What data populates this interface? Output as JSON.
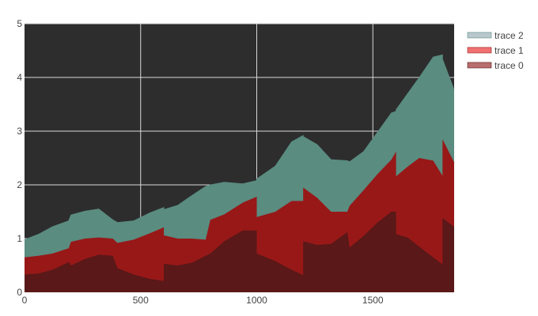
{
  "chart_data": {
    "type": "area",
    "stacked": true,
    "xlim": [
      0,
      1850
    ],
    "ylim": [
      0,
      5
    ],
    "x_ticks": [
      0,
      500,
      1000,
      1500
    ],
    "x_tick_labels": [
      "0",
      "500",
      "1000",
      "1500"
    ],
    "y_ticks": [
      0,
      1,
      2,
      3,
      4,
      5
    ],
    "y_tick_labels": [
      "0",
      "1",
      "2",
      "3",
      "4",
      "5"
    ],
    "grid": true,
    "plot_background": "#2d2d2d",
    "legend_position": "top-right",
    "series": [
      {
        "name": "trace 0",
        "color": "#5a1818",
        "legend_color": "#b86e6e",
        "points": [
          [
            0,
            0.33
          ],
          [
            60,
            0.35
          ],
          [
            120,
            0.42
          ],
          [
            190,
            0.56
          ],
          [
            200,
            0.5
          ],
          [
            260,
            0.62
          ],
          [
            320,
            0.7
          ],
          [
            380,
            0.68
          ],
          [
            400,
            0.45
          ],
          [
            470,
            0.33
          ],
          [
            540,
            0.25
          ],
          [
            600,
            0.21
          ],
          [
            600,
            0.53
          ],
          [
            660,
            0.5
          ],
          [
            720,
            0.55
          ],
          [
            780,
            0.68
          ],
          [
            800,
            0.72
          ],
          [
            860,
            0.95
          ],
          [
            940,
            1.15
          ],
          [
            1000,
            1.15
          ],
          [
            1000,
            0.72
          ],
          [
            1080,
            0.58
          ],
          [
            1150,
            0.42
          ],
          [
            1200,
            0.32
          ],
          [
            1200,
            0.95
          ],
          [
            1260,
            0.88
          ],
          [
            1320,
            0.9
          ],
          [
            1390,
            1.12
          ],
          [
            1400,
            0.83
          ],
          [
            1460,
            1.05
          ],
          [
            1520,
            1.3
          ],
          [
            1580,
            1.5
          ],
          [
            1600,
            1.5
          ],
          [
            1600,
            1.08
          ],
          [
            1650,
            1.02
          ],
          [
            1700,
            0.85
          ],
          [
            1760,
            0.65
          ],
          [
            1800,
            0.52
          ],
          [
            1800,
            1.38
          ],
          [
            1850,
            1.22
          ]
        ]
      },
      {
        "name": "trace 1",
        "color": "#981818",
        "legend_color": "#f07272",
        "points": [
          [
            0,
            0.32
          ],
          [
            60,
            0.33
          ],
          [
            120,
            0.3
          ],
          [
            190,
            0.26
          ],
          [
            200,
            0.44
          ],
          [
            260,
            0.38
          ],
          [
            320,
            0.32
          ],
          [
            380,
            0.32
          ],
          [
            400,
            0.47
          ],
          [
            470,
            0.65
          ],
          [
            540,
            0.85
          ],
          [
            600,
            1.0
          ],
          [
            600,
            0.53
          ],
          [
            660,
            0.5
          ],
          [
            720,
            0.45
          ],
          [
            780,
            0.3
          ],
          [
            800,
            0.63
          ],
          [
            860,
            0.5
          ],
          [
            940,
            0.52
          ],
          [
            1000,
            0.63
          ],
          [
            1000,
            0.68
          ],
          [
            1080,
            0.92
          ],
          [
            1150,
            1.28
          ],
          [
            1200,
            1.38
          ],
          [
            1200,
            1.0
          ],
          [
            1260,
            0.88
          ],
          [
            1320,
            0.6
          ],
          [
            1390,
            0.38
          ],
          [
            1400,
            0.78
          ],
          [
            1460,
            0.85
          ],
          [
            1520,
            0.9
          ],
          [
            1580,
            0.97
          ],
          [
            1600,
            1.12
          ],
          [
            1600,
            1.08
          ],
          [
            1650,
            1.32
          ],
          [
            1700,
            1.65
          ],
          [
            1760,
            1.8
          ],
          [
            1800,
            1.65
          ],
          [
            1800,
            1.47
          ],
          [
            1850,
            1.2
          ]
        ]
      },
      {
        "name": "trace 2",
        "color": "#5a8c80",
        "legend_color": "#b9c8cc",
        "points": [
          [
            0,
            0.33
          ],
          [
            60,
            0.4
          ],
          [
            120,
            0.5
          ],
          [
            190,
            0.51
          ],
          [
            200,
            0.5
          ],
          [
            260,
            0.51
          ],
          [
            320,
            0.53
          ],
          [
            380,
            0.35
          ],
          [
            400,
            0.38
          ],
          [
            470,
            0.35
          ],
          [
            540,
            0.38
          ],
          [
            600,
            0.37
          ],
          [
            600,
            0.48
          ],
          [
            660,
            0.62
          ],
          [
            720,
            0.8
          ],
          [
            780,
            0.99
          ],
          [
            800,
            0.65
          ],
          [
            860,
            0.6
          ],
          [
            940,
            0.35
          ],
          [
            1000,
            0.3
          ],
          [
            1000,
            0.71
          ],
          [
            1080,
            0.85
          ],
          [
            1150,
            1.1
          ],
          [
            1200,
            1.22
          ],
          [
            1200,
            0.95
          ],
          [
            1260,
            0.99
          ],
          [
            1320,
            0.97
          ],
          [
            1390,
            0.95
          ],
          [
            1400,
            0.82
          ],
          [
            1460,
            0.72
          ],
          [
            1520,
            0.78
          ],
          [
            1580,
            0.87
          ],
          [
            1600,
            0.75
          ],
          [
            1600,
            1.24
          ],
          [
            1650,
            1.36
          ],
          [
            1700,
            1.5
          ],
          [
            1760,
            1.93
          ],
          [
            1800,
            2.25
          ],
          [
            1800,
            1.49
          ],
          [
            1850,
            1.35
          ]
        ]
      }
    ]
  }
}
